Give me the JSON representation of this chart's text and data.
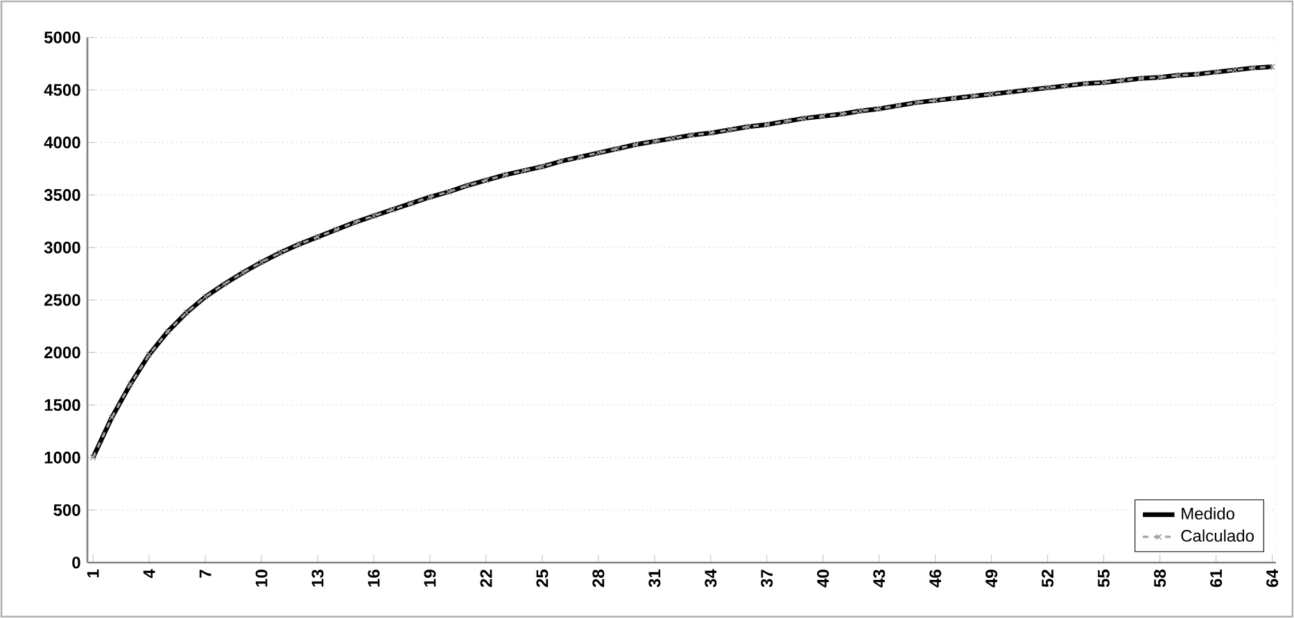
{
  "chart_data": {
    "type": "line",
    "categories": [
      "1",
      null,
      null,
      "4",
      null,
      null,
      "7",
      null,
      null,
      "10",
      null,
      null,
      "13",
      null,
      null,
      "16",
      null,
      null,
      "19",
      null,
      null,
      "22",
      null,
      null,
      "25",
      null,
      null,
      "28",
      null,
      null,
      "31",
      null,
      null,
      "34",
      null,
      null,
      "37",
      null,
      null,
      "40",
      null,
      null,
      "43",
      null,
      null,
      "46",
      null,
      null,
      "49",
      null,
      null,
      "52",
      null,
      null,
      "55",
      null,
      null,
      "58",
      null,
      null,
      "61",
      null,
      null,
      "64"
    ],
    "series": [
      {
        "name": "Medido",
        "color": "#000000",
        "marker": "none",
        "line_style": "solid",
        "values": [
          1000,
          1380,
          1700,
          1980,
          2200,
          2380,
          2530,
          2650,
          2760,
          2860,
          2950,
          3030,
          3100,
          3170,
          3240,
          3300,
          3360,
          3420,
          3480,
          3530,
          3590,
          3640,
          3690,
          3730,
          3770,
          3820,
          3860,
          3900,
          3940,
          3980,
          4010,
          4040,
          4070,
          4090,
          4120,
          4150,
          4170,
          4200,
          4230,
          4250,
          4270,
          4300,
          4320,
          4350,
          4380,
          4400,
          4420,
          4440,
          4460,
          4480,
          4500,
          4520,
          4540,
          4560,
          4570,
          4590,
          4610,
          4620,
          4640,
          4650,
          4670,
          4690,
          4710,
          4720
        ]
      },
      {
        "name": "Calculado",
        "color": "#a0a0a8",
        "marker": "cross",
        "line_style": "dashed",
        "values": [
          1000,
          1380,
          1700,
          1980,
          2200,
          2380,
          2530,
          2650,
          2760,
          2860,
          2950,
          3030,
          3100,
          3170,
          3240,
          3300,
          3360,
          3420,
          3480,
          3530,
          3590,
          3640,
          3690,
          3730,
          3770,
          3820,
          3860,
          3900,
          3940,
          3980,
          4010,
          4040,
          4070,
          4090,
          4120,
          4150,
          4170,
          4200,
          4230,
          4250,
          4270,
          4300,
          4320,
          4350,
          4380,
          4400,
          4420,
          4440,
          4460,
          4480,
          4500,
          4520,
          4540,
          4560,
          4570,
          4590,
          4610,
          4620,
          4640,
          4650,
          4670,
          4690,
          4710,
          4720
        ]
      }
    ],
    "ylim": [
      0,
      5000
    ],
    "yticks": [
      0,
      500,
      1000,
      1500,
      2000,
      2500,
      3000,
      3500,
      4000,
      4500,
      5000
    ],
    "grid": "y",
    "legend": "bottom right"
  }
}
